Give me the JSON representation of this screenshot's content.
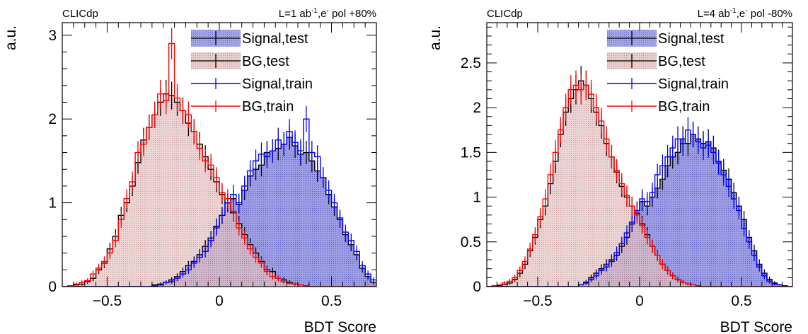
{
  "chart_data": [
    {
      "type": "histogram",
      "header_left": "CLICdp",
      "header_right": {
        "text1": "L=1 ab",
        "sup1": "-1",
        "text2": ",e",
        "sup2": "-",
        "text3": " pol +80%"
      },
      "xlabel": "BDT Score",
      "ylabel": "a.u.",
      "xlim": [
        -0.7,
        0.7
      ],
      "ylim": [
        0,
        3.15
      ],
      "xticks": [
        -0.5,
        0,
        0.5
      ],
      "xtick_labels": [
        "−0.5",
        "0",
        "0.5"
      ],
      "yticks": [
        0,
        1,
        2,
        3
      ],
      "ytick_labels": [
        "0",
        "1",
        "2",
        "3"
      ],
      "bin_start": -0.7,
      "bin_width": 0.025,
      "legend": [
        "Signal,test",
        "BG,test",
        "Signal,train",
        "BG,train"
      ],
      "legend_position": "top-right",
      "colors": {
        "signal_fill": "#7f7fdd",
        "bg_fill": "#dcb0b0",
        "train_signal": "#0000ff",
        "train_bg": "#ff0000",
        "test": "#000000"
      },
      "series": [
        {
          "name": "Signal,test",
          "values": [
            0,
            0,
            0,
            0,
            0,
            0,
            0,
            0,
            0,
            0,
            0,
            0,
            0,
            0,
            0,
            0,
            0.02,
            0.03,
            0.05,
            0.08,
            0.12,
            0.18,
            0.25,
            0.3,
            0.38,
            0.48,
            0.58,
            0.72,
            0.85,
            1.0,
            1.05,
            0.98,
            1.15,
            1.32,
            1.4,
            1.45,
            1.6,
            1.62,
            1.65,
            1.7,
            1.78,
            1.68,
            1.58,
            1.6,
            1.5,
            1.38,
            1.3,
            1.1,
            0.95,
            0.8,
            0.62,
            0.5,
            0.38,
            0.22,
            0.12,
            0.05
          ]
        },
        {
          "name": "BG,test",
          "values": [
            0,
            0.01,
            0.02,
            0.03,
            0.06,
            0.1,
            0.2,
            0.28,
            0.45,
            0.6,
            0.85,
            1.0,
            1.2,
            1.48,
            1.75,
            1.9,
            2.05,
            2.2,
            2.3,
            2.28,
            2.2,
            2.1,
            1.95,
            1.85,
            1.7,
            1.55,
            1.4,
            1.25,
            1.1,
            1.0,
            0.88,
            0.75,
            0.62,
            0.5,
            0.4,
            0.3,
            0.2,
            0.18,
            0.1,
            0.08,
            0.05,
            0.03,
            0.02,
            0.01,
            0,
            0,
            0,
            0,
            0,
            0,
            0,
            0,
            0,
            0,
            0,
            0
          ]
        },
        {
          "name": "Signal,train",
          "values": [
            0,
            0,
            0,
            0,
            0,
            0,
            0,
            0,
            0,
            0,
            0,
            0,
            0,
            0,
            0,
            0,
            0.01,
            0.02,
            0.05,
            0.06,
            0.1,
            0.15,
            0.2,
            0.28,
            0.35,
            0.42,
            0.55,
            0.7,
            0.85,
            1.0,
            1.1,
            1.0,
            1.2,
            1.38,
            1.5,
            1.58,
            1.55,
            1.62,
            1.75,
            1.7,
            1.85,
            1.72,
            1.62,
            2.0,
            1.6,
            1.55,
            1.3,
            1.15,
            1.0,
            0.82,
            0.65,
            0.55,
            0.42,
            0.25,
            0.15,
            0.08
          ]
        },
        {
          "name": "BG,train",
          "values": [
            0,
            0.01,
            0.03,
            0.05,
            0.07,
            0.15,
            0.22,
            0.3,
            0.4,
            0.55,
            0.8,
            1.05,
            1.25,
            1.6,
            1.7,
            1.9,
            2.05,
            2.3,
            2.22,
            2.9,
            2.25,
            2.1,
            2.05,
            1.85,
            1.65,
            1.5,
            1.45,
            1.3,
            1.12,
            1.05,
            0.9,
            0.7,
            0.58,
            0.45,
            0.35,
            0.28,
            0.18,
            0.12,
            0.1,
            0.06,
            0.04,
            0.03,
            0.02,
            0.01,
            0,
            0,
            0,
            0,
            0,
            0,
            0,
            0,
            0,
            0,
            0,
            0
          ]
        }
      ]
    },
    {
      "type": "histogram",
      "header_left": "CLICdp",
      "header_right": {
        "text1": "L=4 ab",
        "sup1": "-1",
        "text2": ",e",
        "sup2": "-",
        "text3": " pol -80%"
      },
      "xlabel": "BDT Score",
      "ylabel": "a.u.",
      "xlim": [
        -0.75,
        0.75
      ],
      "ylim": [
        0,
        2.95
      ],
      "xticks": [
        -0.5,
        0,
        0.5
      ],
      "xtick_labels": [
        "−0.5",
        "0",
        "0.5"
      ],
      "yticks": [
        0,
        0.5,
        1,
        1.5,
        2,
        2.5
      ],
      "ytick_labels": [
        "0",
        "0.5",
        "1",
        "1.5",
        "2",
        "2.5"
      ],
      "bin_start": -0.75,
      "bin_width": 0.025,
      "legend": [
        "Signal,test",
        "BG,test",
        "Signal,train",
        "BG,train"
      ],
      "legend_position": "top-right",
      "colors": {
        "signal_fill": "#7f7fdd",
        "bg_fill": "#dcb0b0",
        "train_signal": "#0000ff",
        "train_bg": "#ff0000",
        "test": "#000000"
      },
      "series": [
        {
          "name": "Signal,test",
          "values": [
            0,
            0,
            0,
            0,
            0,
            0,
            0,
            0,
            0,
            0,
            0,
            0,
            0,
            0,
            0,
            0,
            0,
            0,
            0.02,
            0.05,
            0.1,
            0.15,
            0.2,
            0.25,
            0.3,
            0.35,
            0.45,
            0.55,
            0.7,
            0.85,
            0.95,
            0.9,
            1.0,
            1.1,
            1.2,
            1.35,
            1.45,
            1.5,
            1.65,
            1.6,
            1.7,
            1.65,
            1.6,
            1.62,
            1.55,
            1.4,
            1.3,
            1.2,
            1.05,
            0.9,
            0.75,
            0.55,
            0.4,
            0.25,
            0.15,
            0.08,
            0.04,
            0.02,
            0.01,
            0
          ]
        },
        {
          "name": "BG,test",
          "values": [
            0,
            0,
            0.01,
            0.02,
            0.04,
            0.08,
            0.15,
            0.25,
            0.4,
            0.55,
            0.75,
            0.9,
            1.15,
            1.4,
            1.7,
            1.95,
            2.1,
            2.2,
            2.3,
            2.25,
            2.1,
            1.95,
            1.8,
            1.6,
            1.45,
            1.28,
            1.12,
            1.0,
            0.9,
            0.82,
            0.7,
            0.58,
            0.45,
            0.35,
            0.25,
            0.18,
            0.12,
            0.08,
            0.05,
            0.03,
            0.02,
            0.01,
            0,
            0,
            0,
            0,
            0,
            0,
            0,
            0,
            0,
            0,
            0,
            0,
            0,
            0,
            0,
            0,
            0,
            0
          ]
        },
        {
          "name": "Signal,train",
          "values": [
            0,
            0,
            0,
            0,
            0,
            0,
            0,
            0,
            0,
            0,
            0,
            0,
            0,
            0,
            0,
            0,
            0,
            0,
            0.02,
            0.04,
            0.08,
            0.12,
            0.18,
            0.22,
            0.28,
            0.38,
            0.48,
            0.6,
            0.72,
            0.85,
            0.98,
            0.95,
            1.05,
            1.25,
            1.35,
            1.45,
            1.55,
            1.65,
            1.6,
            1.75,
            1.7,
            1.62,
            1.55,
            1.58,
            1.5,
            1.38,
            1.25,
            1.12,
            0.98,
            0.85,
            0.65,
            0.5,
            0.35,
            0.22,
            0.12,
            0.06,
            0.03,
            0.02,
            0.01,
            0
          ]
        },
        {
          "name": "BG,train",
          "values": [
            0,
            0.01,
            0.02,
            0.04,
            0.06,
            0.1,
            0.18,
            0.28,
            0.42,
            0.58,
            0.78,
            0.98,
            1.25,
            1.5,
            1.75,
            2.0,
            2.2,
            2.25,
            2.2,
            2.25,
            2.15,
            2.0,
            1.85,
            1.65,
            1.45,
            1.3,
            1.15,
            1.02,
            0.9,
            0.8,
            0.68,
            0.55,
            0.45,
            0.35,
            0.25,
            0.18,
            0.12,
            0.08,
            0.05,
            0.03,
            0.02,
            0.01,
            0,
            0,
            0,
            0,
            0,
            0,
            0,
            0,
            0,
            0,
            0,
            0,
            0,
            0,
            0,
            0,
            0,
            0
          ]
        }
      ]
    }
  ]
}
